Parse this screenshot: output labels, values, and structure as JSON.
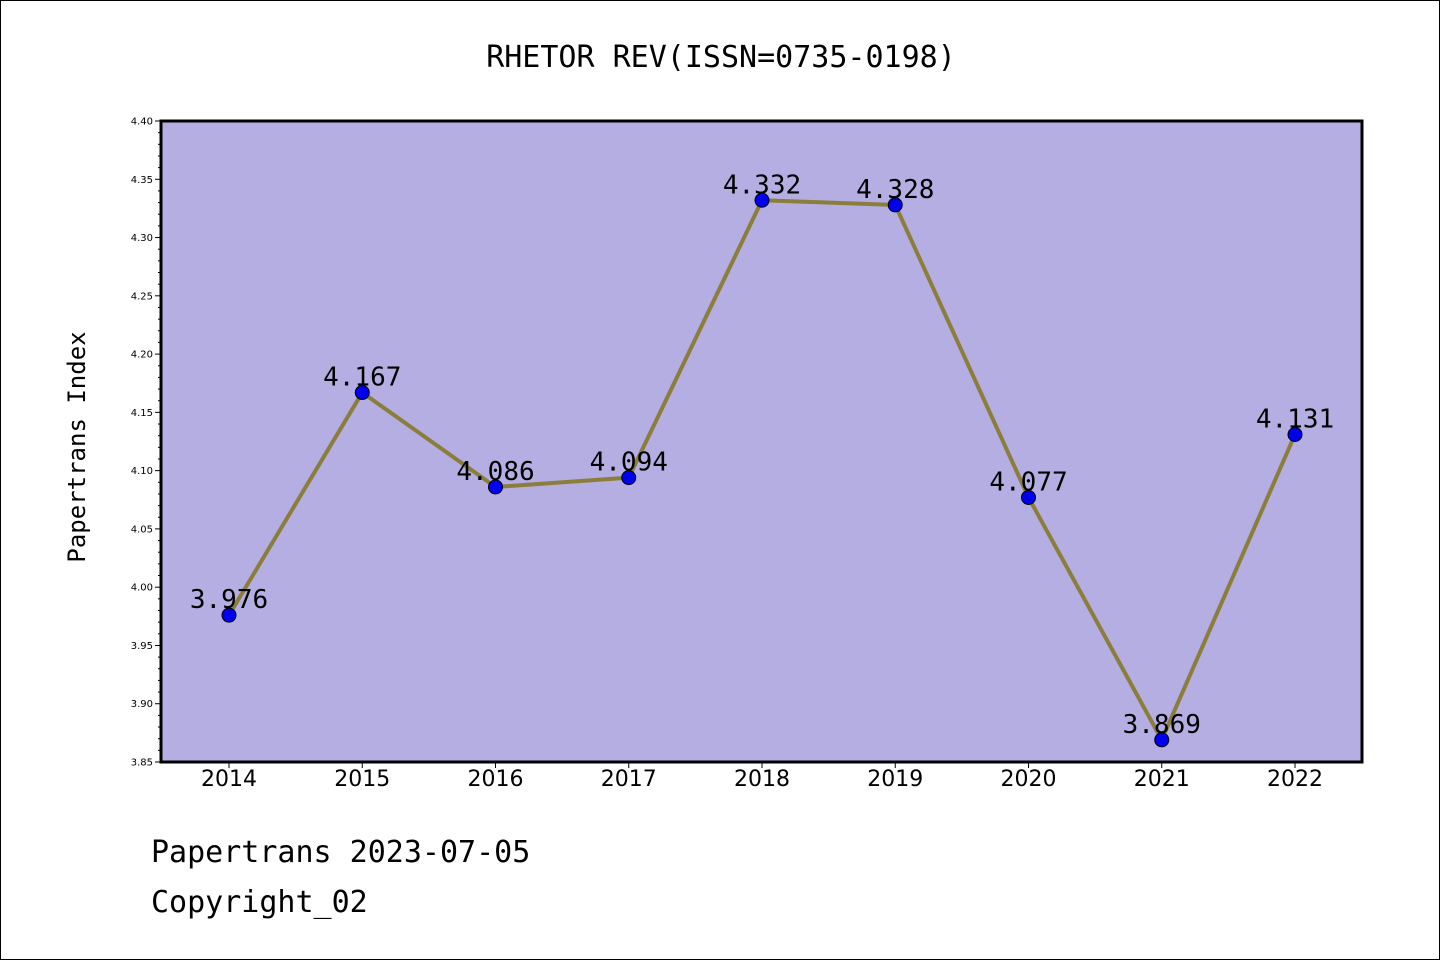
{
  "chart_data": {
    "type": "line",
    "title": "RHETOR REV(ISSN=0735-0198)",
    "ylabel": "Papertrans Index",
    "xlabel": "",
    "categories": [
      "2014",
      "2015",
      "2016",
      "2017",
      "2018",
      "2019",
      "2020",
      "2021",
      "2022"
    ],
    "values": [
      3.976,
      4.167,
      4.086,
      4.094,
      4.332,
      4.328,
      4.077,
      3.869,
      4.131
    ],
    "value_labels": [
      "3.976",
      "4.167",
      "4.086",
      "4.094",
      "4.332",
      "4.328",
      "4.077",
      "3.869",
      "4.131"
    ],
    "ylim": [
      3.85,
      4.4
    ],
    "yticks": [
      "3.85",
      "3.90",
      "3.95",
      "4.00",
      "4.05",
      "4.10",
      "4.15",
      "4.20",
      "4.25",
      "4.30",
      "4.35",
      "4.40"
    ],
    "grid": false,
    "colors": {
      "plot_background": "#b4aee2",
      "line": "#8b7d3a",
      "marker": "#0000ee"
    }
  },
  "footer": {
    "line1": "Papertrans 2023-07-05",
    "line2": "Copyright_02"
  }
}
